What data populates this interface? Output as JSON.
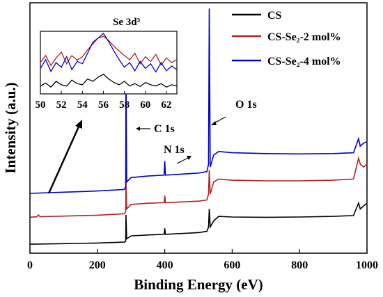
{
  "chart_data": [
    {
      "type": "line",
      "xlabel": "Binding Energy (eV)",
      "ylabel": "Intensity (a.u.)",
      "xlim": [
        0,
        1000
      ],
      "x_ticks": [
        0,
        200,
        400,
        600,
        800,
        1000
      ],
      "y_ticks_shown": false,
      "grid": false,
      "legend": "top-right",
      "peak_labels": [
        {
          "text": "C 1s",
          "x": 285
        },
        {
          "text": "N 1s",
          "x": 400
        },
        {
          "text": "O 1s",
          "x": 532
        }
      ],
      "series": [
        {
          "name": "CS",
          "color": "#000000",
          "baseline_offset": 0,
          "points": [
            [
              0,
              0.2
            ],
            [
              100,
              0.4
            ],
            [
              200,
              0.6
            ],
            [
              280,
              0.9
            ],
            [
              284,
              1.2
            ],
            [
              285,
              10
            ],
            [
              287,
              2
            ],
            [
              300,
              3
            ],
            [
              350,
              3.3
            ],
            [
              398,
              3.5
            ],
            [
              400,
              5.5
            ],
            [
              402,
              3.5
            ],
            [
              500,
              4.1
            ],
            [
              525,
              4.5
            ],
            [
              530,
              6
            ],
            [
              532,
              12
            ],
            [
              535,
              6
            ],
            [
              545,
              8
            ],
            [
              560,
              9.5
            ],
            [
              600,
              9.3
            ],
            [
              700,
              9.2
            ],
            [
              800,
              9.3
            ],
            [
              900,
              9.5
            ],
            [
              960,
              9.8
            ],
            [
              975,
              14
            ],
            [
              980,
              12
            ],
            [
              990,
              13
            ],
            [
              1000,
              14
            ]
          ]
        },
        {
          "name": "CS-Se2-2 mol%",
          "color": "#b22222",
          "baseline_offset": 9,
          "points": [
            [
              0,
              0.2
            ],
            [
              20,
              0.4
            ],
            [
              25,
              1
            ],
            [
              30,
              0.4
            ],
            [
              100,
              0.6
            ],
            [
              200,
              0.9
            ],
            [
              280,
              1.4
            ],
            [
              284,
              2
            ],
            [
              285,
              12
            ],
            [
              287,
              3
            ],
            [
              300,
              4.5
            ],
            [
              350,
              4.9
            ],
            [
              398,
              5.1
            ],
            [
              400,
              7.5
            ],
            [
              402,
              5.1
            ],
            [
              500,
              5.6
            ],
            [
              525,
              6
            ],
            [
              530,
              8
            ],
            [
              532,
              16
            ],
            [
              535,
              8
            ],
            [
              545,
              12
            ],
            [
              560,
              13
            ],
            [
              600,
              12.6
            ],
            [
              700,
              12.4
            ],
            [
              800,
              12.4
            ],
            [
              900,
              12.6
            ],
            [
              960,
              13
            ],
            [
              975,
              20
            ],
            [
              980,
              18
            ],
            [
              990,
              17
            ],
            [
              1000,
              18
            ]
          ]
        },
        {
          "name": "CS-Se2-4 mol%",
          "color": "#0000cd",
          "baseline_offset": 17,
          "points": [
            [
              0,
              0.2
            ],
            [
              100,
              0.6
            ],
            [
              200,
              1
            ],
            [
              280,
              1.5
            ],
            [
              284,
              2.5
            ],
            [
              285,
              43
            ],
            [
              287,
              4
            ],
            [
              300,
              5.5
            ],
            [
              350,
              6
            ],
            [
              398,
              6.3
            ],
            [
              400,
              11
            ],
            [
              402,
              6.3
            ],
            [
              500,
              7
            ],
            [
              525,
              7.5
            ],
            [
              530,
              10
            ],
            [
              532,
              62
            ],
            [
              535,
              9
            ],
            [
              545,
              13
            ],
            [
              560,
              14.2
            ],
            [
              600,
              13.8
            ],
            [
              700,
              13.5
            ],
            [
              800,
              13.4
            ],
            [
              900,
              13.5
            ],
            [
              960,
              13.8
            ],
            [
              975,
              18.5
            ],
            [
              980,
              16
            ],
            [
              990,
              17
            ],
            [
              1000,
              17.5
            ]
          ]
        }
      ],
      "legend_entries": [
        {
          "label": "CS",
          "color": "#000000"
        },
        {
          "label": "CS-Se₂-2 mol%",
          "color": "#b22222"
        },
        {
          "label": "CS-Se₂-4 mol%",
          "color": "#0000cd"
        }
      ]
    },
    {
      "type": "line",
      "title": "Se 3d³",
      "xlim": [
        50,
        63
      ],
      "x_ticks": [
        50,
        52,
        54,
        56,
        58,
        60,
        62
      ],
      "inset": true,
      "series": [
        {
          "name": "CS",
          "color": "#000000",
          "x": [
            50,
            50.5,
            51,
            51.5,
            52,
            52.5,
            53,
            53.5,
            54,
            54.5,
            55,
            55.5,
            56,
            56.5,
            57,
            57.5,
            58,
            58.5,
            59,
            59.5,
            60,
            60.5,
            61,
            61.5,
            62,
            62.5,
            63
          ],
          "y": [
            0.1,
            0.15,
            0.08,
            0.18,
            0.12,
            0.1,
            0.2,
            0.14,
            0.12,
            0.22,
            0.18,
            0.25,
            0.3,
            0.22,
            0.16,
            0.12,
            0.18,
            0.1,
            0.14,
            0.09,
            0.16,
            0.12,
            0.1,
            0.14,
            0.08,
            0.12,
            0.1
          ]
        },
        {
          "name": "CS-Se2-2 mol%",
          "color": "#b22222",
          "x": [
            50,
            50.5,
            51,
            51.5,
            52,
            52.5,
            53,
            53.5,
            54,
            54.5,
            55,
            55.5,
            56,
            56.5,
            57,
            57.5,
            58,
            58.5,
            59,
            59.5,
            60,
            60.5,
            61,
            61.5,
            62,
            62.5,
            63
          ],
          "y": [
            0.5,
            0.62,
            0.45,
            0.58,
            0.68,
            0.48,
            0.62,
            0.54,
            0.6,
            0.72,
            0.82,
            0.92,
            0.95,
            0.88,
            0.78,
            0.7,
            0.62,
            0.55,
            0.66,
            0.48,
            0.6,
            0.52,
            0.64,
            0.46,
            0.58,
            0.5,
            0.55
          ]
        },
        {
          "name": "CS-Se2-4 mol%",
          "color": "#0000cd",
          "x": [
            50,
            50.5,
            51,
            51.5,
            52,
            52.5,
            53,
            53.5,
            54,
            54.5,
            55,
            55.5,
            56,
            56.5,
            57,
            57.5,
            58,
            58.5,
            59,
            59.5,
            60,
            60.5,
            61,
            61.5,
            62,
            62.5,
            63
          ],
          "y": [
            0.4,
            0.55,
            0.35,
            0.5,
            0.42,
            0.6,
            0.38,
            0.52,
            0.48,
            0.66,
            0.85,
            0.92,
            1.0,
            0.86,
            0.7,
            0.55,
            0.42,
            0.5,
            0.36,
            0.52,
            0.4,
            0.48,
            0.34,
            0.5,
            0.36,
            0.44,
            0.38
          ]
        }
      ]
    }
  ]
}
